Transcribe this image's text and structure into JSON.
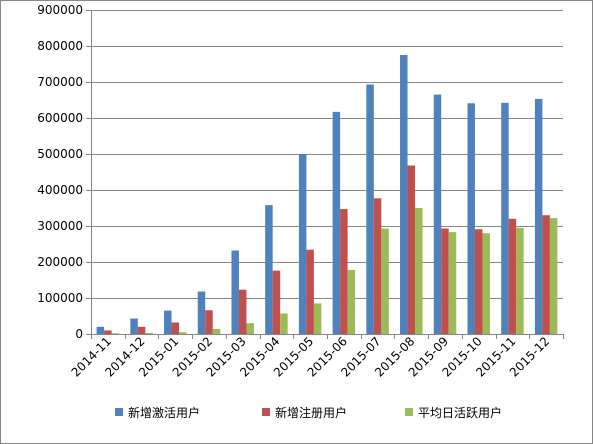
{
  "chart_data": {
    "type": "bar",
    "categories": [
      "2014-11",
      "2014-12",
      "2015-01",
      "2015-02",
      "2015-03",
      "2015-04",
      "2015-05",
      "2015-06",
      "2015-07",
      "2015-08",
      "2015-09",
      "2015-10",
      "2015-11",
      "2015-12"
    ],
    "series": [
      {
        "name": "新增激活用户",
        "color": "#4f81bd",
        "values": [
          20000,
          43000,
          65000,
          118000,
          232000,
          358000,
          500000,
          617000,
          693000,
          775000,
          665000,
          641000,
          642000,
          653000
        ]
      },
      {
        "name": "新增注册用户",
        "color": "#c0504d",
        "values": [
          10000,
          20000,
          32000,
          66000,
          123000,
          176000,
          234000,
          347000,
          377000,
          468000,
          293000,
          291000,
          320000,
          330000
        ]
      },
      {
        "name": "平均日活跃用户",
        "color": "#9bbb59",
        "values": [
          2000,
          3000,
          5000,
          14000,
          30000,
          57000,
          85000,
          178000,
          293000,
          350000,
          283000,
          280000,
          295000,
          322000
        ]
      }
    ],
    "y_ticks": [
      "0",
      "100000",
      "200000",
      "300000",
      "400000",
      "500000",
      "600000",
      "700000",
      "800000",
      "900000"
    ],
    "ylim": [
      0,
      900000
    ],
    "grid": true,
    "legend_position": "bottom",
    "title": "",
    "xlabel": "",
    "ylabel": ""
  }
}
